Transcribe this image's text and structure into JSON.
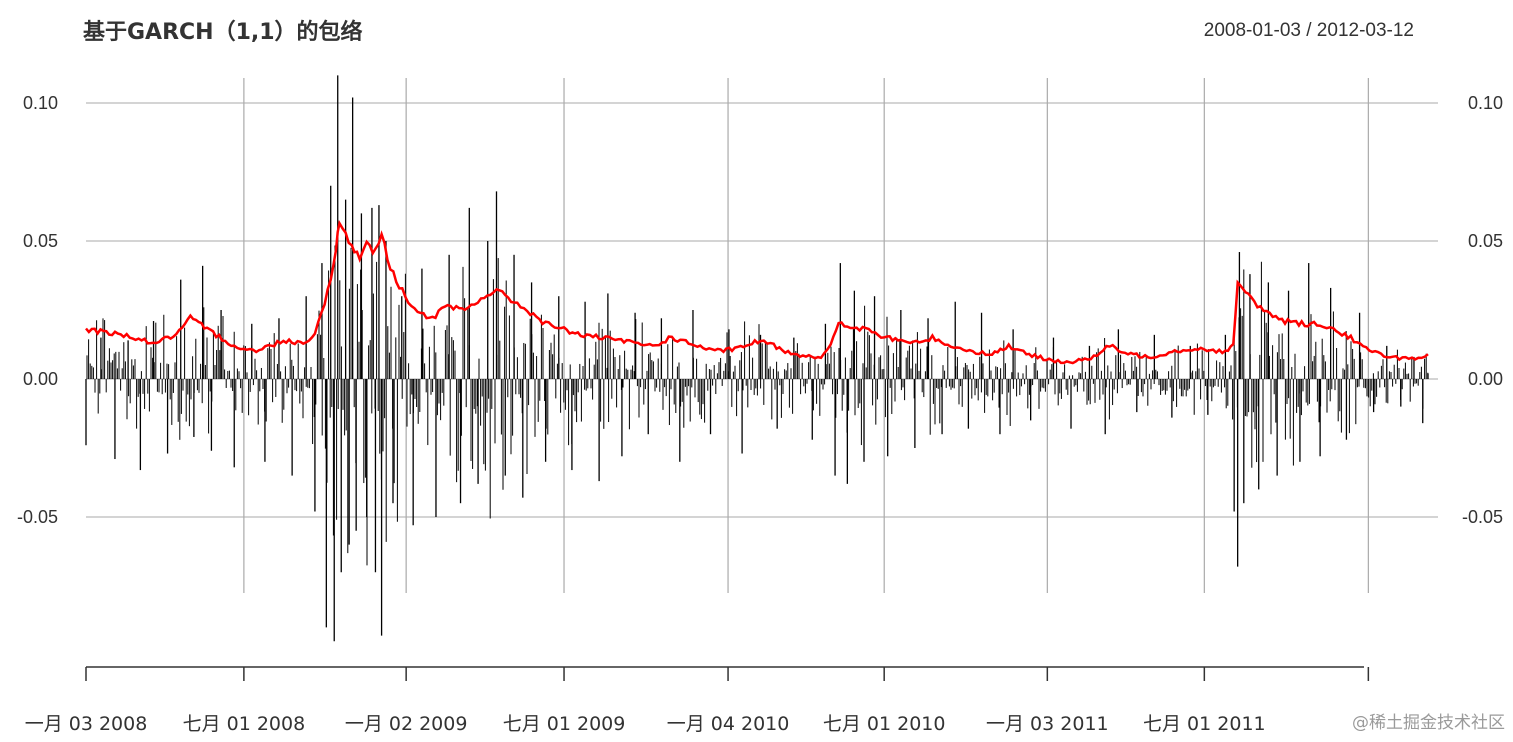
{
  "chart_data": {
    "type": "line",
    "title": "基于GARCH（1,1）的包络",
    "date_range": "2008-01-03 / 2012-03-12",
    "xlabel": "",
    "ylabel": "",
    "ylim": [
      -0.1,
      0.11
    ],
    "y_ticks": [
      {
        "value": 0.1,
        "label": "0.10"
      },
      {
        "value": 0.05,
        "label": "0.05"
      },
      {
        "value": 0.0,
        "label": "0.00"
      },
      {
        "value": -0.05,
        "label": "-0.05"
      }
    ],
    "x_range": [
      "2008-01-03",
      "2012-03-12"
    ],
    "x_ticks": [
      {
        "date": "2008-01-03",
        "label": "一月 03 2008"
      },
      {
        "date": "2008-07-01",
        "label": "七月 01 2008"
      },
      {
        "date": "2009-01-02",
        "label": "一月 02 2009"
      },
      {
        "date": "2009-07-01",
        "label": "七月 01 2009"
      },
      {
        "date": "2010-01-04",
        "label": "一月 04 2010"
      },
      {
        "date": "2010-07-01",
        "label": "七月 01 2010"
      },
      {
        "date": "2011-01-03",
        "label": "一月 03 2011"
      },
      {
        "date": "2011-07-01",
        "label": "七月 01 2011"
      }
    ],
    "extra_gridlines": [
      "2012-01-04"
    ],
    "grid": true,
    "series": [
      {
        "color": "#000000",
        "style": "spike",
        "points": [
          [
            "2008-01-03",
            -0.024
          ],
          [
            "2008-01-20",
            0.015
          ],
          [
            "2008-02-05",
            -0.029
          ],
          [
            "2008-02-20",
            0.014
          ],
          [
            "2008-03-05",
            -0.033
          ],
          [
            "2008-03-20",
            0.021
          ],
          [
            "2008-04-05",
            -0.027
          ],
          [
            "2008-04-20",
            0.036
          ],
          [
            "2008-05-05",
            -0.021
          ],
          [
            "2008-05-15",
            0.041
          ],
          [
            "2008-05-25",
            -0.026
          ],
          [
            "2008-06-05",
            0.025
          ],
          [
            "2008-06-20",
            -0.032
          ],
          [
            "2008-07-10",
            0.02
          ],
          [
            "2008-07-25",
            -0.03
          ],
          [
            "2008-08-10",
            0.022
          ],
          [
            "2008-08-25",
            -0.035
          ],
          [
            "2008-09-10",
            0.03
          ],
          [
            "2008-09-20",
            -0.048
          ],
          [
            "2008-09-28",
            0.042
          ],
          [
            "2008-10-03",
            -0.09
          ],
          [
            "2008-10-08",
            0.07
          ],
          [
            "2008-10-12",
            -0.095
          ],
          [
            "2008-10-16",
            0.11
          ],
          [
            "2008-10-20",
            -0.07
          ],
          [
            "2008-10-25",
            0.065
          ],
          [
            "2008-10-29",
            -0.06
          ],
          [
            "2008-11-02",
            0.102
          ],
          [
            "2008-11-06",
            -0.055
          ],
          [
            "2008-11-12",
            0.06
          ],
          [
            "2008-11-18",
            -0.05
          ],
          [
            "2008-11-24",
            0.062
          ],
          [
            "2008-11-28",
            -0.07
          ],
          [
            "2008-12-02",
            0.063
          ],
          [
            "2008-12-05",
            -0.093
          ],
          [
            "2008-12-10",
            0.05
          ],
          [
            "2008-12-18",
            -0.045
          ],
          [
            "2008-12-28",
            0.03
          ],
          [
            "2009-01-10",
            -0.053
          ],
          [
            "2009-01-20",
            0.04
          ],
          [
            "2009-02-05",
            -0.05
          ],
          [
            "2009-02-20",
            0.045
          ],
          [
            "2009-03-05",
            -0.045
          ],
          [
            "2009-03-15",
            0.062
          ],
          [
            "2009-03-25",
            -0.038
          ],
          [
            "2009-04-05",
            0.05
          ],
          [
            "2009-04-15",
            0.068
          ],
          [
            "2009-04-25",
            -0.035
          ],
          [
            "2009-05-05",
            0.045
          ],
          [
            "2009-05-15",
            -0.043
          ],
          [
            "2009-05-25",
            0.035
          ],
          [
            "2009-06-10",
            -0.03
          ],
          [
            "2009-06-25",
            0.03
          ],
          [
            "2009-07-10",
            -0.033
          ],
          [
            "2009-07-25",
            0.028
          ],
          [
            "2009-08-10",
            -0.037
          ],
          [
            "2009-08-20",
            0.031
          ],
          [
            "2009-09-05",
            -0.028
          ],
          [
            "2009-09-20",
            0.024
          ],
          [
            "2009-10-05",
            -0.02
          ],
          [
            "2009-10-20",
            0.022
          ],
          [
            "2009-11-10",
            -0.03
          ],
          [
            "2009-11-25",
            0.025
          ],
          [
            "2009-12-15",
            -0.02
          ],
          [
            "2010-01-05",
            0.018
          ],
          [
            "2010-01-20",
            -0.027
          ],
          [
            "2010-02-10",
            0.016
          ],
          [
            "2010-03-01",
            -0.018
          ],
          [
            "2010-03-20",
            0.015
          ],
          [
            "2010-04-10",
            -0.022
          ],
          [
            "2010-04-25",
            0.02
          ],
          [
            "2010-05-06",
            -0.035
          ],
          [
            "2010-05-12",
            0.042
          ],
          [
            "2010-05-20",
            -0.038
          ],
          [
            "2010-05-28",
            0.032
          ],
          [
            "2010-06-08",
            -0.03
          ],
          [
            "2010-06-20",
            0.03
          ],
          [
            "2010-07-05",
            -0.028
          ],
          [
            "2010-07-20",
            0.025
          ],
          [
            "2010-08-05",
            -0.025
          ],
          [
            "2010-08-20",
            0.022
          ],
          [
            "2010-09-05",
            -0.02
          ],
          [
            "2010-09-20",
            0.028
          ],
          [
            "2010-10-05",
            -0.018
          ],
          [
            "2010-10-20",
            0.024
          ],
          [
            "2010-11-10",
            -0.02
          ],
          [
            "2010-11-25",
            0.018
          ],
          [
            "2010-12-15",
            -0.015
          ],
          [
            "2011-01-10",
            0.015
          ],
          [
            "2011-01-30",
            -0.018
          ],
          [
            "2011-02-20",
            0.012
          ],
          [
            "2011-03-10",
            -0.02
          ],
          [
            "2011-03-25",
            0.018
          ],
          [
            "2011-04-15",
            -0.012
          ],
          [
            "2011-05-05",
            0.016
          ],
          [
            "2011-05-25",
            -0.014
          ],
          [
            "2011-06-15",
            0.012
          ],
          [
            "2011-07-05",
            -0.013
          ],
          [
            "2011-07-25",
            0.016
          ],
          [
            "2011-08-04",
            -0.048
          ],
          [
            "2011-08-08",
            -0.068
          ],
          [
            "2011-08-10",
            0.046
          ],
          [
            "2011-08-15",
            -0.045
          ],
          [
            "2011-08-22",
            0.038
          ],
          [
            "2011-09-01",
            -0.04
          ],
          [
            "2011-09-12",
            0.035
          ],
          [
            "2011-09-22",
            -0.035
          ],
          [
            "2011-10-05",
            0.032
          ],
          [
            "2011-10-18",
            -0.03
          ],
          [
            "2011-10-28",
            0.042
          ],
          [
            "2011-11-10",
            -0.028
          ],
          [
            "2011-11-22",
            0.033
          ],
          [
            "2011-12-10",
            -0.022
          ],
          [
            "2011-12-25",
            0.024
          ],
          [
            "2012-01-10",
            -0.012
          ],
          [
            "2012-01-25",
            0.012
          ],
          [
            "2012-02-10",
            -0.01
          ],
          [
            "2012-02-25",
            0.008
          ],
          [
            "2012-03-06",
            -0.016
          ],
          [
            "2012-03-12",
            0.002
          ]
        ]
      },
      {
        "color": "#ff0000",
        "style": "line",
        "points": [
          [
            "2008-01-03",
            0.018
          ],
          [
            "2008-02-15",
            0.016
          ],
          [
            "2008-03-20",
            0.013
          ],
          [
            "2008-04-15",
            0.016
          ],
          [
            "2008-05-01",
            0.022
          ],
          [
            "2008-05-20",
            0.018
          ],
          [
            "2008-06-20",
            0.012
          ],
          [
            "2008-07-15",
            0.01
          ],
          [
            "2008-08-15",
            0.014
          ],
          [
            "2008-09-10",
            0.013
          ],
          [
            "2008-09-20",
            0.017
          ],
          [
            "2008-10-01",
            0.028
          ],
          [
            "2008-10-08",
            0.035
          ],
          [
            "2008-10-14",
            0.048
          ],
          [
            "2008-10-18",
            0.058
          ],
          [
            "2008-10-25",
            0.052
          ],
          [
            "2008-11-01",
            0.048
          ],
          [
            "2008-11-10",
            0.044
          ],
          [
            "2008-11-18",
            0.05
          ],
          [
            "2008-11-25",
            0.046
          ],
          [
            "2008-12-05",
            0.052
          ],
          [
            "2008-12-15",
            0.04
          ],
          [
            "2009-01-01",
            0.03
          ],
          [
            "2009-01-15",
            0.024
          ],
          [
            "2009-02-01",
            0.022
          ],
          [
            "2009-02-15",
            0.026
          ],
          [
            "2009-03-10",
            0.025
          ],
          [
            "2009-04-01",
            0.03
          ],
          [
            "2009-04-15",
            0.032
          ],
          [
            "2009-05-05",
            0.028
          ],
          [
            "2009-05-20",
            0.025
          ],
          [
            "2009-06-10",
            0.02
          ],
          [
            "2009-07-01",
            0.018
          ],
          [
            "2009-07-20",
            0.016
          ],
          [
            "2009-08-10",
            0.015
          ],
          [
            "2009-09-01",
            0.014
          ],
          [
            "2009-09-20",
            0.013
          ],
          [
            "2009-10-10",
            0.012
          ],
          [
            "2009-11-01",
            0.015
          ],
          [
            "2009-11-20",
            0.013
          ],
          [
            "2009-12-20",
            0.01
          ],
          [
            "2010-01-15",
            0.011
          ],
          [
            "2010-02-10",
            0.014
          ],
          [
            "2010-02-25",
            0.012
          ],
          [
            "2010-03-20",
            0.009
          ],
          [
            "2010-04-20",
            0.008
          ],
          [
            "2010-05-01",
            0.012
          ],
          [
            "2010-05-10",
            0.02
          ],
          [
            "2010-05-20",
            0.019
          ],
          [
            "2010-06-10",
            0.018
          ],
          [
            "2010-07-01",
            0.015
          ],
          [
            "2010-07-20",
            0.014
          ],
          [
            "2010-08-10",
            0.013
          ],
          [
            "2010-08-25",
            0.015
          ],
          [
            "2010-09-15",
            0.012
          ],
          [
            "2010-10-10",
            0.01
          ],
          [
            "2010-11-01",
            0.009
          ],
          [
            "2010-11-20",
            0.012
          ],
          [
            "2010-12-10",
            0.009
          ],
          [
            "2011-01-05",
            0.007
          ],
          [
            "2011-02-01",
            0.006
          ],
          [
            "2011-02-25",
            0.008
          ],
          [
            "2011-03-15",
            0.012
          ],
          [
            "2011-04-05",
            0.009
          ],
          [
            "2011-05-01",
            0.008
          ],
          [
            "2011-05-25",
            0.01
          ],
          [
            "2011-06-20",
            0.011
          ],
          [
            "2011-07-25",
            0.01
          ],
          [
            "2011-08-03",
            0.012
          ],
          [
            "2011-08-08",
            0.035
          ],
          [
            "2011-08-20",
            0.03
          ],
          [
            "2011-09-10",
            0.024
          ],
          [
            "2011-10-01",
            0.021
          ],
          [
            "2011-10-20",
            0.02
          ],
          [
            "2011-11-10",
            0.02
          ],
          [
            "2011-11-25",
            0.018
          ],
          [
            "2011-12-15",
            0.015
          ],
          [
            "2012-01-05",
            0.01
          ],
          [
            "2012-02-01",
            0.008
          ],
          [
            "2012-03-01",
            0.007
          ],
          [
            "2012-03-12",
            0.009
          ]
        ]
      }
    ]
  },
  "watermark": "@稀土掘金技术社区"
}
